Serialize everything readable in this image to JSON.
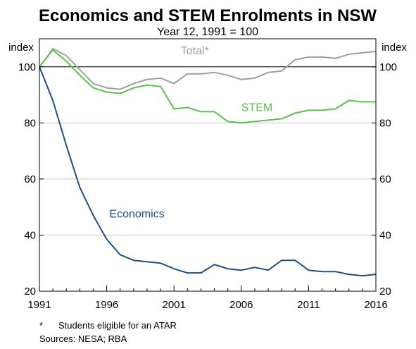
{
  "chart_data": {
    "type": "line",
    "title": "Economics and STEM Enrolments in NSW",
    "subtitle": "Year 12, 1991 = 100",
    "ylabel_left": "index",
    "ylabel_right": "index",
    "xlim": [
      1991,
      2016
    ],
    "ylim": [
      20,
      110
    ],
    "yticks": [
      20,
      40,
      60,
      80,
      100
    ],
    "xticks": [
      1991,
      1996,
      2001,
      2006,
      2011,
      2016
    ],
    "reference_line": 100,
    "grid": true,
    "series": [
      {
        "name": "Total*",
        "color": "#9e9e9e",
        "points": [
          [
            1991,
            100
          ],
          [
            1991.5,
            103
          ],
          [
            1992,
            106.5
          ],
          [
            1993,
            104
          ],
          [
            1994,
            99
          ],
          [
            1995,
            94
          ],
          [
            1996,
            92.5
          ],
          [
            1997,
            92
          ],
          [
            1998,
            94
          ],
          [
            1999,
            95.5
          ],
          [
            2000,
            96
          ],
          [
            2001,
            94
          ],
          [
            2002,
            97.5
          ],
          [
            2003,
            97.5
          ],
          [
            2004,
            98
          ],
          [
            2005,
            97
          ],
          [
            2006,
            95.5
          ],
          [
            2007,
            96
          ],
          [
            2008,
            98
          ],
          [
            2009,
            98.5
          ],
          [
            2010,
            102.5
          ],
          [
            2011,
            103.5
          ],
          [
            2012,
            103.5
          ],
          [
            2013,
            103
          ],
          [
            2014,
            104.5
          ],
          [
            2015,
            105
          ],
          [
            2016,
            105.5
          ]
        ]
      },
      {
        "name": "STEM",
        "color": "#5cbf52",
        "points": [
          [
            1991,
            100
          ],
          [
            1991.5,
            103
          ],
          [
            1992,
            106
          ],
          [
            1993,
            102
          ],
          [
            1994,
            97
          ],
          [
            1995,
            92.5
          ],
          [
            1996,
            91
          ],
          [
            1997,
            90.5
          ],
          [
            1998,
            92.5
          ],
          [
            1999,
            93.5
          ],
          [
            2000,
            93
          ],
          [
            2001,
            85
          ],
          [
            2002,
            85.5
          ],
          [
            2003,
            84
          ],
          [
            2004,
            84
          ],
          [
            2005,
            80.5
          ],
          [
            2006,
            80
          ],
          [
            2007,
            80.5
          ],
          [
            2008,
            81
          ],
          [
            2009,
            81.5
          ],
          [
            2010,
            83.5
          ],
          [
            2011,
            84.5
          ],
          [
            2012,
            84.5
          ],
          [
            2013,
            85
          ],
          [
            2014,
            88
          ],
          [
            2015,
            87.5
          ],
          [
            2016,
            87.5
          ]
        ]
      },
      {
        "name": "Economics",
        "color": "#1e4f82",
        "points": [
          [
            1991,
            100
          ],
          [
            1992,
            88
          ],
          [
            1993,
            72
          ],
          [
            1994,
            57
          ],
          [
            1995,
            47
          ],
          [
            1996,
            38.5
          ],
          [
            1997,
            33
          ],
          [
            1998,
            31
          ],
          [
            1999,
            30.5
          ],
          [
            2000,
            30
          ],
          [
            2001,
            28
          ],
          [
            2002,
            26.5
          ],
          [
            2003,
            26.5
          ],
          [
            2004,
            29.5
          ],
          [
            2005,
            28
          ],
          [
            2006,
            27.5
          ],
          [
            2007,
            28.5
          ],
          [
            2008,
            27.5
          ],
          [
            2009,
            31
          ],
          [
            2010,
            31
          ],
          [
            2011,
            27.5
          ],
          [
            2012,
            27
          ],
          [
            2013,
            27
          ],
          [
            2014,
            26
          ],
          [
            2015,
            25.5
          ],
          [
            2016,
            26
          ]
        ]
      }
    ],
    "series_labels": [
      {
        "text": "Total*",
        "x": 2001.5,
        "y": 104.5
      },
      {
        "text": "STEM",
        "x": 2006.0,
        "y": 84.2
      },
      {
        "text": "Economics",
        "x": 1996.2,
        "y": 46.3
      }
    ]
  },
  "footnotes": {
    "marker": "*",
    "note": "Students eligible for an ATAR",
    "sources": "Sources: NESA; RBA"
  }
}
